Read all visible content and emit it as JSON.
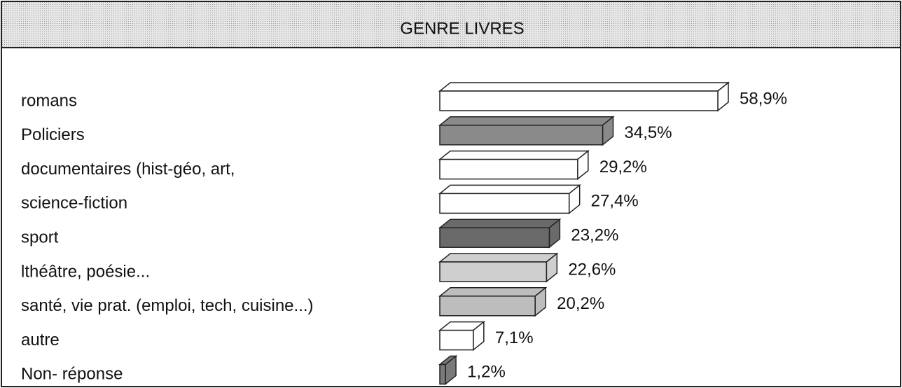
{
  "chart_data": {
    "type": "bar",
    "orientation": "horizontal",
    "title": "GENRE LIVRES",
    "categories": [
      "romans",
      "Policiers",
      "documentaires (hist-géo, art,",
      "science-fiction",
      "sport",
      "lthéâtre, poésie...",
      "santé, vie prat. (emploi, tech, cuisine...)",
      "autre",
      "Non- réponse"
    ],
    "values": [
      58.9,
      34.5,
      29.2,
      27.4,
      23.2,
      22.6,
      20.2,
      7.1,
      1.2
    ],
    "value_labels": [
      "58,9%",
      "34,5%",
      "29,2%",
      "27,4%",
      "23,2%",
      "22,6%",
      "20,2%",
      "7,1%",
      "1,2%"
    ],
    "colors": [
      "#ffffff",
      "#8a8a8a",
      "#ffffff",
      "#ffffff",
      "#6a6a6a",
      "#cfcfcf",
      "#bdbdbd",
      "#ffffff",
      "#7a7a7a"
    ]
  }
}
